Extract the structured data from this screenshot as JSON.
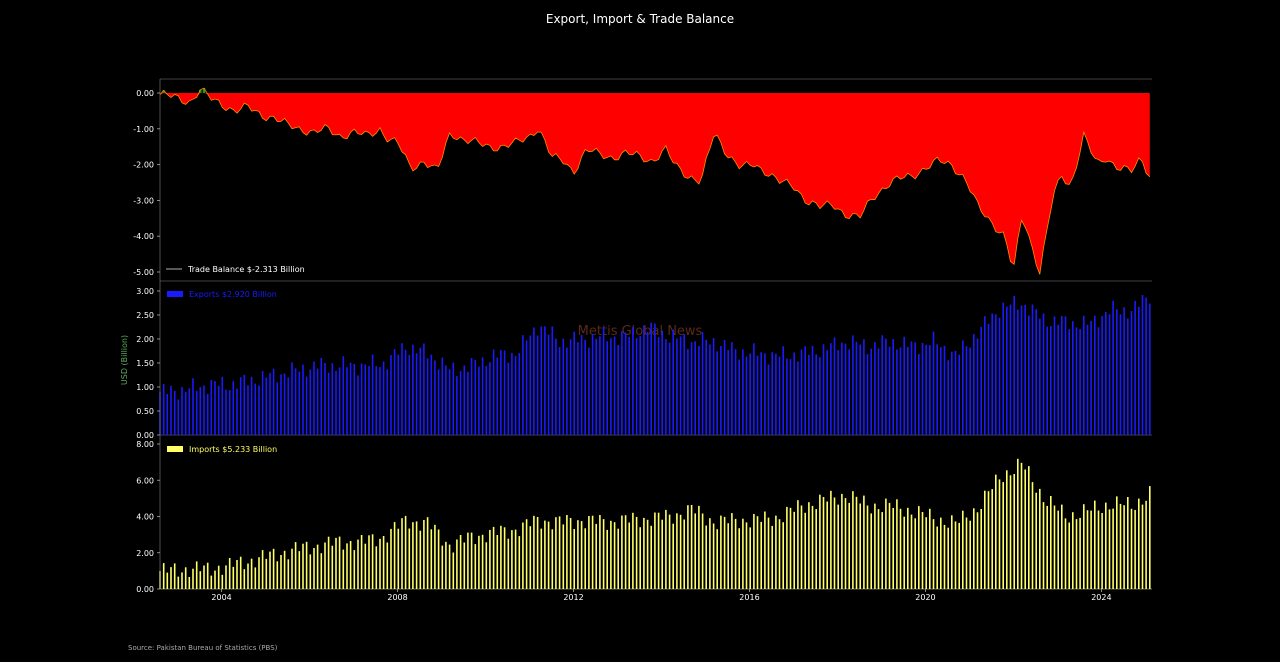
{
  "title": "Export, Import & Trade Balance",
  "ylabel": "USD (Billion)",
  "watermark": "Mettis Global News",
  "source": "Source: Pakistan Bureau of Statistics (PBS)",
  "colors": {
    "background": "#000000",
    "balance_fill": "#ff0000",
    "balance_line": "#ff8c00",
    "balance_positive": "#1a9a1a",
    "exports": "#1a1aff",
    "imports": "#ffff66",
    "ylabel": "#5fa85f",
    "watermark": "#5a2a1a"
  },
  "chart_data": [
    {
      "type": "area",
      "name": "trade-balance",
      "legend": "Trade Balance $-2.313 Billion",
      "x_label": "",
      "y_label": "",
      "x_range": [
        2002.6,
        2025.15
      ],
      "ylim": [
        -5.3,
        0.4
      ],
      "ytick_labels": [
        "0.00",
        "-1.00",
        "-2.00",
        "-3.00",
        "-4.00",
        "-5.00"
      ],
      "ytick_values": [
        0,
        -1,
        -2,
        -3,
        -4,
        -5
      ],
      "x": [
        2002.7,
        2003.0,
        2003.3,
        2003.5,
        2003.8,
        2004.0,
        2004.3,
        2004.6,
        2004.9,
        2005.2,
        2005.5,
        2005.8,
        2006.1,
        2006.4,
        2006.7,
        2007.0,
        2007.3,
        2007.6,
        2007.8,
        2008.0,
        2008.3,
        2008.6,
        2008.9,
        2009.2,
        2009.5,
        2009.8,
        2010.1,
        2010.4,
        2010.7,
        2011.0,
        2011.2,
        2011.5,
        2011.8,
        2012.0,
        2012.3,
        2012.6,
        2012.9,
        2013.2,
        2013.5,
        2013.8,
        2014.1,
        2014.3,
        2014.6,
        2014.9,
        2015.2,
        2015.5,
        2015.8,
        2016.1,
        2016.4,
        2016.7,
        2017.0,
        2017.3,
        2017.6,
        2017.9,
        2018.2,
        2018.5,
        2018.8,
        2019.1,
        2019.4,
        2019.7,
        2020.0,
        2020.3,
        2020.6,
        2020.9,
        2021.2,
        2021.5,
        2021.8,
        2022.0,
        2022.2,
        2022.4,
        2022.6,
        2022.9,
        2023.1,
        2023.3,
        2023.6,
        2023.9,
        2024.1,
        2024.4,
        2024.7,
        2024.9,
        2025.1
      ],
      "y": [
        -0.05,
        -0.15,
        -0.25,
        0.1,
        -0.2,
        -0.3,
        -0.5,
        -0.4,
        -0.6,
        -0.7,
        -0.9,
        -1.0,
        -1.1,
        -1.0,
        -1.2,
        -1.1,
        -1.2,
        -1.0,
        -1.3,
        -1.4,
        -2.1,
        -1.9,
        -2.2,
        -1.1,
        -1.3,
        -1.4,
        -1.5,
        -1.5,
        -1.4,
        -1.2,
        -0.95,
        -1.8,
        -1.9,
        -2.2,
        -1.6,
        -1.7,
        -1.8,
        -1.7,
        -1.75,
        -1.9,
        -1.6,
        -2.0,
        -2.3,
        -2.5,
        -1.1,
        -1.7,
        -2.1,
        -2.0,
        -2.2,
        -2.5,
        -2.6,
        -3.0,
        -3.2,
        -3.1,
        -3.4,
        -3.5,
        -2.9,
        -2.6,
        -2.4,
        -2.3,
        -2.1,
        -1.9,
        -2.0,
        -2.4,
        -3.2,
        -3.6,
        -4.0,
        -5.0,
        -3.4,
        -4.2,
        -5.0,
        -2.9,
        -2.3,
        -2.6,
        -1.2,
        -2.0,
        -1.8,
        -2.1,
        -2.2,
        -1.8,
        -2.31
      ]
    },
    {
      "type": "bar",
      "name": "exports",
      "legend": "Exports $2.920 Billion",
      "x_label": "",
      "y_label": "USD (Billion)",
      "ylim": [
        0,
        3.0
      ],
      "ytick_labels": [
        "0.00",
        "0.50",
        "1.00",
        "1.50",
        "2.00",
        "2.50",
        "3.00"
      ],
      "ytick_values": [
        0,
        0.5,
        1.0,
        1.5,
        2.0,
        2.5,
        3.0
      ],
      "x": [
        2002.7,
        2003.2,
        2003.7,
        2004.2,
        2004.7,
        2005.2,
        2005.7,
        2006.2,
        2006.7,
        2007.2,
        2007.7,
        2008.2,
        2008.7,
        2009.2,
        2009.7,
        2010.2,
        2010.7,
        2011.2,
        2011.7,
        2012.2,
        2012.7,
        2013.2,
        2013.7,
        2014.2,
        2014.7,
        2015.2,
        2015.7,
        2016.2,
        2016.7,
        2017.2,
        2017.7,
        2018.2,
        2018.7,
        2019.2,
        2019.7,
        2020.2,
        2020.7,
        2021.2,
        2021.7,
        2022.2,
        2022.7,
        2023.2,
        2023.7,
        2024.2,
        2024.7,
        2025.1
      ],
      "y": [
        0.9,
        0.95,
        1.05,
        1.05,
        1.15,
        1.25,
        1.35,
        1.45,
        1.45,
        1.45,
        1.5,
        1.85,
        1.7,
        1.35,
        1.45,
        1.65,
        1.7,
        2.3,
        1.95,
        2.0,
        2.05,
        2.05,
        2.25,
        2.05,
        1.95,
        1.95,
        1.75,
        1.7,
        1.65,
        1.7,
        1.8,
        1.95,
        1.85,
        1.95,
        1.85,
        1.95,
        1.65,
        2.15,
        2.65,
        2.75,
        2.4,
        2.35,
        2.3,
        2.6,
        2.6,
        2.92
      ]
    },
    {
      "type": "bar",
      "name": "imports",
      "legend": "Imports $5.233 Billion",
      "x_label": "",
      "y_label": "",
      "ylim": [
        0,
        8.0
      ],
      "ytick_labels": [
        "0.00",
        "2.00",
        "4.00",
        "6.00",
        "8.00"
      ],
      "ytick_values": [
        0,
        2,
        4,
        6,
        8
      ],
      "x": [
        2002.7,
        2003.2,
        2003.7,
        2004.2,
        2004.7,
        2005.2,
        2005.7,
        2006.2,
        2006.7,
        2007.2,
        2007.7,
        2008.2,
        2008.7,
        2009.2,
        2009.7,
        2010.2,
        2010.7,
        2011.2,
        2011.7,
        2012.2,
        2012.7,
        2013.2,
        2013.7,
        2014.2,
        2014.7,
        2015.2,
        2015.7,
        2016.2,
        2016.7,
        2017.2,
        2017.7,
        2018.2,
        2018.7,
        2019.2,
        2019.7,
        2020.2,
        2020.7,
        2021.2,
        2021.7,
        2022.2,
        2022.7,
        2023.2,
        2023.7,
        2024.2,
        2024.7,
        2025.1
      ],
      "y": [
        1.0,
        1.1,
        1.1,
        1.3,
        1.6,
        1.9,
        2.2,
        2.4,
        2.6,
        2.6,
        2.9,
        3.8,
        3.6,
        2.4,
        2.9,
        3.1,
        3.3,
        3.8,
        3.7,
        3.8,
        3.7,
        3.8,
        3.9,
        4.0,
        4.4,
        3.7,
        3.8,
        3.8,
        4.0,
        4.6,
        4.9,
        5.2,
        4.6,
        4.6,
        4.3,
        3.9,
        3.6,
        4.5,
        6.2,
        6.9,
        5.0,
        4.0,
        4.3,
        4.7,
        4.6,
        5.23
      ]
    }
  ],
  "x_axis": {
    "type": "date",
    "range": [
      "2002-08",
      "2025-03"
    ],
    "tick_labels": [
      "2004",
      "2008",
      "2012",
      "2016",
      "2020",
      "2024"
    ],
    "tick_values": [
      2004,
      2008,
      2012,
      2016,
      2020,
      2024
    ]
  },
  "grid": false,
  "legend_position": "upper-left"
}
